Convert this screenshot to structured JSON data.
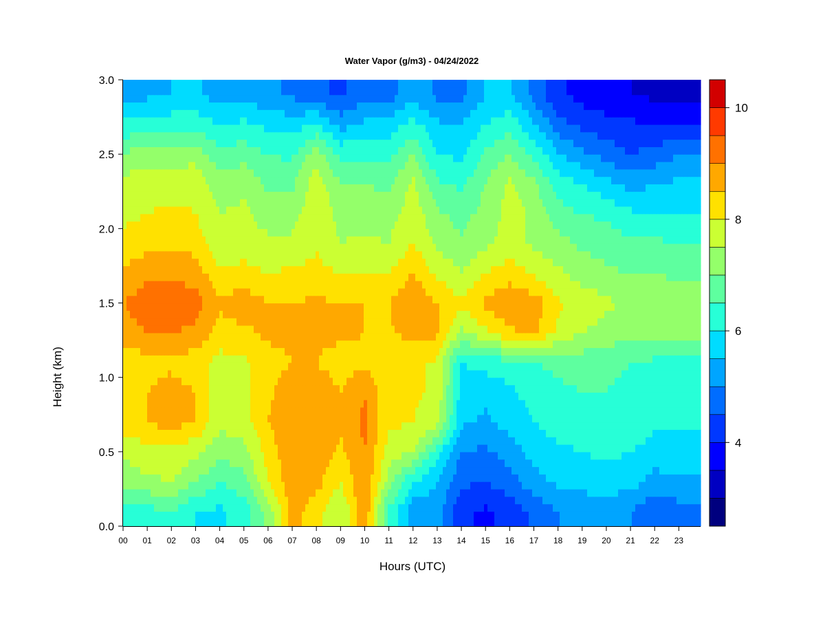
{
  "chart_data": {
    "type": "heatmap",
    "title": "Water Vapor (g/m3) - 04/24/2022",
    "xlabel": "Hours (UTC)",
    "ylabel": "Height (km)",
    "x_ticks": [
      "00",
      "01",
      "02",
      "03",
      "04",
      "05",
      "06",
      "07",
      "08",
      "09",
      "10",
      "11",
      "12",
      "13",
      "14",
      "15",
      "16",
      "17",
      "18",
      "19",
      "20",
      "21",
      "22",
      "23"
    ],
    "y_ticks": [
      "0.0",
      "0.5",
      "1.0",
      "1.5",
      "2.0",
      "2.5",
      "3.0"
    ],
    "xlim": [
      0,
      23.9
    ],
    "ylim": [
      0,
      3.0
    ],
    "colorbar": {
      "ticks": [
        "4",
        "6",
        "8",
        "10"
      ],
      "tick_values": [
        4,
        6,
        8,
        10
      ],
      "range": [
        2.5,
        10.5
      ],
      "levels": [
        2.5,
        3.0,
        3.5,
        4.0,
        4.5,
        5.0,
        5.5,
        6.0,
        6.5,
        7.0,
        7.5,
        8.0,
        8.5,
        9.0,
        9.5,
        10.0,
        10.5
      ],
      "colors": [
        "#00007f",
        "#0000c2",
        "#0000ff",
        "#0038ff",
        "#006dff",
        "#00a5ff",
        "#00dcff",
        "#27ffd7",
        "#5eff9f",
        "#94ff6a",
        "#cbff33",
        "#ffe100",
        "#ffa800",
        "#ff7100",
        "#ff3a00",
        "#d20000",
        "#8c0000"
      ]
    },
    "grid": false,
    "hours": [
      0,
      1,
      2,
      3,
      4,
      5,
      6,
      7,
      8,
      9,
      10,
      11,
      12,
      13,
      14,
      15,
      16,
      17,
      18,
      19,
      20,
      21,
      22,
      23
    ],
    "heights_km": [
      0.1,
      0.3,
      0.5,
      0.7,
      0.9,
      1.1,
      1.3,
      1.5,
      1.7,
      1.9,
      2.1,
      2.3,
      2.5,
      2.7,
      2.9
    ],
    "values": [
      [
        6.2,
        6.3,
        6.5,
        6.0,
        5.9,
        6.2,
        7.2,
        8.7,
        8.2,
        7.5,
        8.9,
        6.4,
        5.2,
        5.3,
        4.1,
        3.9,
        4.2,
        4.6,
        5.0,
        5.1,
        5.2,
        5.0,
        4.6,
        4.8
      ],
      [
        7.2,
        7.4,
        7.5,
        7.0,
        6.5,
        6.8,
        8.0,
        8.9,
        8.7,
        8.0,
        9.0,
        7.3,
        6.0,
        5.5,
        4.6,
        4.5,
        4.8,
        5.3,
        5.6,
        5.7,
        5.8,
        5.7,
        5.3,
        5.4
      ],
      [
        7.6,
        7.8,
        7.9,
        7.6,
        7.2,
        7.3,
        8.2,
        8.9,
        8.8,
        8.4,
        9.0,
        7.8,
        7.5,
        6.2,
        5.0,
        4.9,
        5.2,
        5.7,
        5.9,
        6.0,
        6.1,
        6.0,
        5.8,
        5.8
      ],
      [
        8.3,
        8.5,
        8.7,
        8.5,
        7.6,
        7.8,
        8.5,
        8.9,
        8.9,
        8.6,
        9.1,
        8.1,
        8.0,
        7.7,
        5.6,
        5.4,
        5.7,
        6.0,
        6.2,
        6.3,
        6.4,
        6.3,
        6.1,
        6.1
      ],
      [
        8.3,
        8.5,
        8.7,
        8.5,
        7.7,
        7.9,
        8.4,
        8.8,
        8.8,
        8.5,
        9.0,
        8.1,
        8.1,
        7.9,
        5.8,
        5.6,
        5.9,
        6.2,
        6.4,
        6.5,
        6.5,
        6.4,
        6.2,
        6.2
      ],
      [
        8.1,
        8.3,
        8.4,
        8.2,
        7.8,
        7.9,
        8.3,
        8.5,
        8.5,
        8.3,
        8.4,
        8.1,
        8.1,
        7.9,
        6.0,
        6.2,
        6.3,
        6.5,
        6.6,
        6.7,
        6.6,
        6.5,
        6.4,
        6.4
      ],
      [
        8.8,
        9.0,
        9.0,
        8.9,
        8.3,
        8.4,
        8.6,
        8.6,
        8.6,
        8.6,
        8.5,
        8.4,
        8.7,
        8.6,
        7.4,
        7.9,
        8.4,
        8.6,
        7.9,
        7.5,
        7.3,
        7.2,
        7.1,
        7.1
      ],
      [
        9.0,
        9.3,
        9.3,
        9.2,
        8.6,
        8.8,
        8.5,
        8.5,
        8.6,
        8.5,
        8.5,
        8.5,
        9.0,
        8.5,
        8.1,
        8.6,
        8.9,
        8.8,
        8.1,
        7.8,
        7.6,
        7.4,
        7.3,
        7.3
      ],
      [
        8.6,
        8.9,
        8.9,
        8.8,
        8.1,
        8.2,
        8.0,
        8.1,
        8.2,
        8.0,
        8.0,
        8.0,
        8.5,
        7.9,
        7.5,
        8.0,
        8.3,
        7.9,
        7.6,
        7.3,
        7.1,
        7.0,
        7.0,
        6.9
      ],
      [
        8.1,
        8.3,
        8.4,
        8.3,
        7.6,
        7.7,
        7.6,
        7.6,
        7.9,
        7.5,
        7.6,
        7.5,
        8.0,
        7.4,
        7.1,
        7.4,
        7.7,
        7.4,
        7.2,
        6.9,
        6.8,
        6.6,
        6.6,
        6.5
      ],
      [
        7.9,
        8.0,
        8.1,
        8.0,
        7.5,
        7.6,
        7.3,
        7.3,
        7.9,
        7.3,
        7.3,
        7.3,
        7.8,
        7.1,
        6.8,
        7.2,
        7.7,
        7.4,
        6.7,
        6.5,
        6.4,
        6.1,
        6.0,
        6.0
      ],
      [
        7.7,
        7.8,
        7.8,
        7.9,
        7.2,
        7.4,
        6.9,
        6.9,
        7.8,
        7.0,
        7.0,
        6.9,
        7.6,
        6.6,
        6.4,
        7.0,
        7.6,
        7.1,
        6.3,
        6.0,
        5.7,
        5.3,
        5.5,
        5.6
      ],
      [
        7.1,
        7.2,
        7.2,
        7.3,
        6.7,
        6.8,
        6.5,
        6.4,
        7.3,
        6.4,
        6.4,
        6.4,
        7.0,
        6.0,
        5.9,
        6.6,
        7.0,
        6.4,
        5.6,
        5.1,
        4.8,
        4.5,
        4.7,
        5.0
      ],
      [
        6.1,
        6.2,
        6.3,
        6.3,
        6.0,
        6.1,
        5.9,
        5.8,
        6.1,
        5.3,
        5.6,
        5.7,
        6.2,
        5.6,
        5.5,
        6.0,
        6.3,
        5.6,
        4.7,
        4.4,
        4.2,
        4.1,
        4.0,
        4.0
      ],
      [
        5.3,
        5.4,
        5.5,
        5.6,
        5.3,
        5.4,
        5.1,
        4.9,
        4.6,
        4.4,
        4.9,
        4.8,
        5.3,
        4.9,
        4.9,
        5.5,
        5.6,
        4.8,
        4.1,
        3.8,
        3.6,
        3.5,
        3.4,
        3.4
      ]
    ]
  }
}
